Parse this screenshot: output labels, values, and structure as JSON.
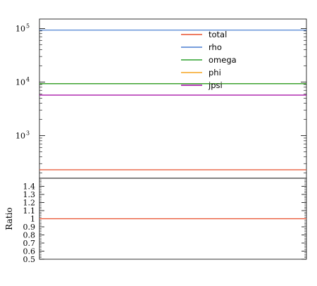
{
  "chart_data": [
    {
      "type": "line",
      "yscale": "log",
      "ylim": [
        160,
        150000
      ],
      "ylabel": "",
      "y_ticks": [
        {
          "value": 1000,
          "mantissa": "10",
          "exp": "3"
        },
        {
          "value": 10000,
          "mantissa": "10",
          "exp": "4"
        },
        {
          "value": 100000,
          "mantissa": "10",
          "exp": "5"
        }
      ],
      "legend_position": "top-center",
      "series": [
        {
          "name": "total",
          "color": "#e8502e",
          "value": 230
        },
        {
          "name": "rho",
          "color": "#4a7fd1",
          "value": 93000
        },
        {
          "name": "omega",
          "color": "#2ca02c",
          "value": 9300
        },
        {
          "name": "phi",
          "color": "#f5a623",
          "value": 9300
        },
        {
          "name": "jpsi",
          "color": "#a000a0",
          "value": 5700
        }
      ]
    },
    {
      "type": "line",
      "ylabel": "Ratio",
      "ylim": [
        0.5,
        1.5
      ],
      "y_ticks": [
        "0.5",
        "0.6",
        "0.7",
        "0.8",
        "0.9",
        "1",
        "1.1",
        "1.2",
        "1.3",
        "1.4"
      ],
      "series": [
        {
          "name": "total",
          "color": "#e8502e",
          "value": 1.0
        }
      ]
    }
  ]
}
